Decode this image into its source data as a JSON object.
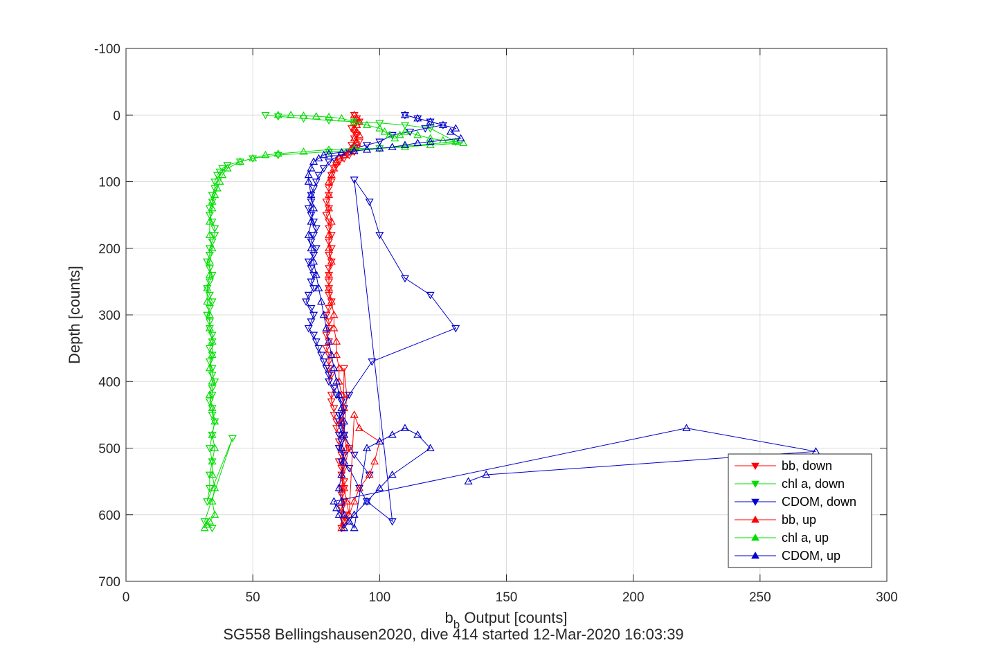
{
  "chart_data": {
    "type": "scatter",
    "title": "",
    "caption": "SG558 Bellingshausen2020, dive 414 started 12-Mar-2020 16:03:39",
    "xlabel_main": "b",
    "xlabel_sub": "b",
    "xlabel_rest": " Output [counts]",
    "ylabel": "Depth [counts]",
    "xlim": [
      0,
      300
    ],
    "ylim": [
      -100,
      700
    ],
    "y_reversed": true,
    "grid": true,
    "x_ticks": [
      "0",
      "50",
      "100",
      "150",
      "200",
      "250",
      "300"
    ],
    "y_ticks": [
      "-100",
      "0",
      "100",
      "200",
      "300",
      "400",
      "500",
      "600",
      "700"
    ],
    "legend_location": "bottom-right",
    "series": [
      {
        "name": "bb, down",
        "color": "#ff0000",
        "marker": "triangle-down",
        "x": [
          90,
          91,
          92,
          90,
          89,
          90,
          91,
          90,
          92,
          89,
          91,
          90,
          88,
          86,
          84,
          83,
          82,
          81,
          81,
          80,
          80,
          79,
          80,
          79,
          80,
          80,
          81,
          80,
          81,
          80,
          81,
          80,
          80,
          80,
          80,
          80,
          81,
          80,
          79,
          80,
          80,
          79,
          80,
          79,
          80,
          80,
          80,
          81,
          80,
          82,
          81,
          81,
          82,
          82,
          83,
          83,
          84,
          84,
          84,
          85,
          84,
          85,
          85,
          86,
          86,
          85,
          86,
          85,
          86,
          86,
          85,
          86,
          87,
          86,
          88,
          86,
          85,
          86
        ],
        "y": [
          0,
          5,
          10,
          15,
          20,
          25,
          30,
          35,
          40,
          45,
          50,
          55,
          60,
          65,
          70,
          75,
          80,
          90,
          100,
          110,
          120,
          130,
          140,
          150,
          160,
          170,
          180,
          190,
          200,
          210,
          220,
          230,
          240,
          250,
          260,
          270,
          280,
          290,
          300,
          310,
          320,
          330,
          340,
          350,
          360,
          370,
          380,
          390,
          400,
          410,
          420,
          430,
          440,
          450,
          460,
          470,
          480,
          490,
          500,
          510,
          520,
          530,
          540,
          550,
          560,
          570,
          580,
          590,
          600,
          610,
          620,
          380,
          420,
          480,
          500,
          530,
          560,
          600
        ]
      },
      {
        "name": "chl a, down",
        "color": "#00dd00",
        "marker": "triangle-down",
        "x": [
          55,
          60,
          70,
          80,
          90,
          100,
          110,
          120,
          130,
          100,
          80,
          60,
          50,
          45,
          40,
          38,
          37,
          36,
          35,
          35,
          34,
          34,
          33,
          33,
          34,
          35,
          35,
          34,
          33,
          33,
          32,
          33,
          34,
          33,
          32,
          33,
          34,
          33,
          32,
          33,
          33,
          34,
          34,
          33,
          34,
          33,
          34,
          34,
          35,
          34,
          34,
          33,
          34,
          34,
          35,
          34,
          33,
          34,
          33,
          33,
          32,
          42,
          31,
          34
        ],
        "y": [
          0,
          2,
          5,
          8,
          10,
          12,
          15,
          20,
          40,
          50,
          55,
          60,
          65,
          70,
          75,
          80,
          85,
          90,
          100,
          110,
          120,
          130,
          140,
          150,
          160,
          170,
          180,
          190,
          200,
          210,
          220,
          230,
          240,
          250,
          260,
          270,
          280,
          290,
          300,
          310,
          320,
          330,
          340,
          350,
          360,
          370,
          380,
          390,
          400,
          410,
          420,
          430,
          440,
          450,
          460,
          480,
          500,
          520,
          540,
          560,
          580,
          485,
          610,
          620
        ]
      },
      {
        "name": "CDOM, down",
        "color": "#0000cc",
        "marker": "triangle-down",
        "x": [
          110,
          115,
          120,
          125,
          118,
          112,
          105,
          100,
          95,
          90,
          88,
          85,
          82,
          80,
          78,
          76,
          75,
          74,
          73,
          73,
          72,
          73,
          74,
          75,
          74,
          73,
          75,
          74,
          72,
          73,
          74,
          73,
          74,
          72,
          71,
          73,
          74,
          73,
          72,
          74,
          75,
          76,
          77,
          78,
          79,
          80,
          80,
          82,
          83,
          85,
          86,
          85,
          84,
          85,
          84,
          85,
          84,
          86,
          85,
          88,
          92,
          95,
          105,
          90,
          96,
          100,
          110,
          120,
          130,
          97,
          88,
          84,
          86,
          90,
          96
        ],
        "y": [
          0,
          5,
          10,
          15,
          20,
          25,
          30,
          40,
          45,
          50,
          55,
          60,
          65,
          70,
          80,
          90,
          100,
          110,
          120,
          130,
          140,
          150,
          160,
          170,
          180,
          190,
          200,
          210,
          220,
          230,
          240,
          250,
          260,
          270,
          280,
          290,
          300,
          310,
          320,
          330,
          340,
          350,
          360,
          370,
          380,
          390,
          400,
          410,
          420,
          430,
          440,
          450,
          460,
          470,
          480,
          490,
          500,
          510,
          520,
          530,
          560,
          580,
          610,
          97,
          130,
          180,
          245,
          270,
          320,
          370,
          420,
          450,
          480,
          510,
          540
        ]
      },
      {
        "name": "bb, up",
        "color": "#ff0000",
        "marker": "triangle-up",
        "x": [
          90,
          91,
          92,
          91,
          90,
          91,
          92,
          90,
          91,
          90,
          89,
          88,
          86,
          84,
          83,
          82,
          81,
          80,
          80,
          80,
          81,
          80,
          80,
          81,
          80,
          80,
          81,
          82,
          82,
          83,
          83,
          84,
          84,
          85,
          86,
          85,
          86,
          87,
          86,
          85,
          86,
          87,
          88,
          90,
          92,
          100,
          98,
          96,
          92,
          90,
          88,
          86,
          85
        ],
        "y": [
          0,
          5,
          10,
          15,
          20,
          25,
          30,
          35,
          40,
          45,
          50,
          55,
          60,
          65,
          70,
          80,
          90,
          100,
          120,
          140,
          160,
          180,
          200,
          220,
          240,
          260,
          280,
          300,
          320,
          340,
          360,
          380,
          400,
          420,
          440,
          460,
          480,
          500,
          520,
          540,
          560,
          580,
          600,
          450,
          470,
          490,
          520,
          540,
          560,
          580,
          600,
          610,
          620
        ]
      },
      {
        "name": "chl a, up",
        "color": "#00dd00",
        "marker": "triangle-up",
        "x": [
          60,
          65,
          70,
          75,
          80,
          85,
          90,
          95,
          100,
          102,
          104,
          106,
          108,
          110,
          115,
          120,
          125,
          130,
          133,
          120,
          110,
          100,
          90,
          80,
          70,
          60,
          55,
          50,
          45,
          40,
          38,
          37,
          36,
          35,
          34,
          34,
          33,
          33,
          34,
          33,
          33,
          32,
          32,
          33,
          33,
          34,
          34,
          33,
          34,
          33,
          34,
          35,
          34,
          35,
          34,
          34,
          35,
          34,
          35,
          33,
          32,
          31
        ],
        "y": [
          0,
          0,
          1,
          2,
          3,
          5,
          10,
          15,
          20,
          25,
          30,
          35,
          30,
          25,
          30,
          35,
          38,
          40,
          42,
          45,
          48,
          50,
          50,
          52,
          55,
          58,
          60,
          65,
          70,
          80,
          90,
          100,
          110,
          120,
          130,
          140,
          160,
          180,
          200,
          220,
          240,
          260,
          280,
          300,
          320,
          340,
          360,
          380,
          400,
          420,
          440,
          460,
          480,
          500,
          520,
          540,
          560,
          580,
          600,
          610,
          615,
          620
        ]
      },
      {
        "name": "CDOM, up",
        "color": "#0000cc",
        "marker": "triangle-up",
        "x": [
          110,
          115,
          120,
          125,
          130,
          128,
          132,
          120,
          115,
          110,
          105,
          100,
          95,
          90,
          85,
          80,
          78,
          76,
          74,
          73,
          72,
          72,
          73,
          74,
          73,
          72,
          73,
          74,
          75,
          76,
          77,
          78,
          79,
          80,
          81,
          82,
          83,
          84,
          85,
          86,
          86,
          85,
          86,
          85,
          84,
          85,
          86,
          88,
          90,
          95,
          100,
          105,
          110,
          115,
          120,
          105,
          100,
          95,
          90,
          88,
          86,
          84,
          83,
          82,
          221,
          272,
          142,
          135
        ],
        "y": [
          0,
          5,
          10,
          15,
          20,
          25,
          35,
          40,
          42,
          45,
          48,
          50,
          52,
          54,
          56,
          58,
          60,
          65,
          70,
          80,
          90,
          100,
          120,
          140,
          160,
          180,
          200,
          220,
          240,
          260,
          280,
          300,
          320,
          340,
          360,
          380,
          400,
          420,
          440,
          460,
          480,
          500,
          520,
          540,
          560,
          580,
          600,
          610,
          620,
          500,
          490,
          480,
          470,
          480,
          500,
          540,
          560,
          580,
          600,
          610,
          620,
          600,
          590,
          580,
          470,
          505,
          540,
          550
        ]
      }
    ]
  }
}
